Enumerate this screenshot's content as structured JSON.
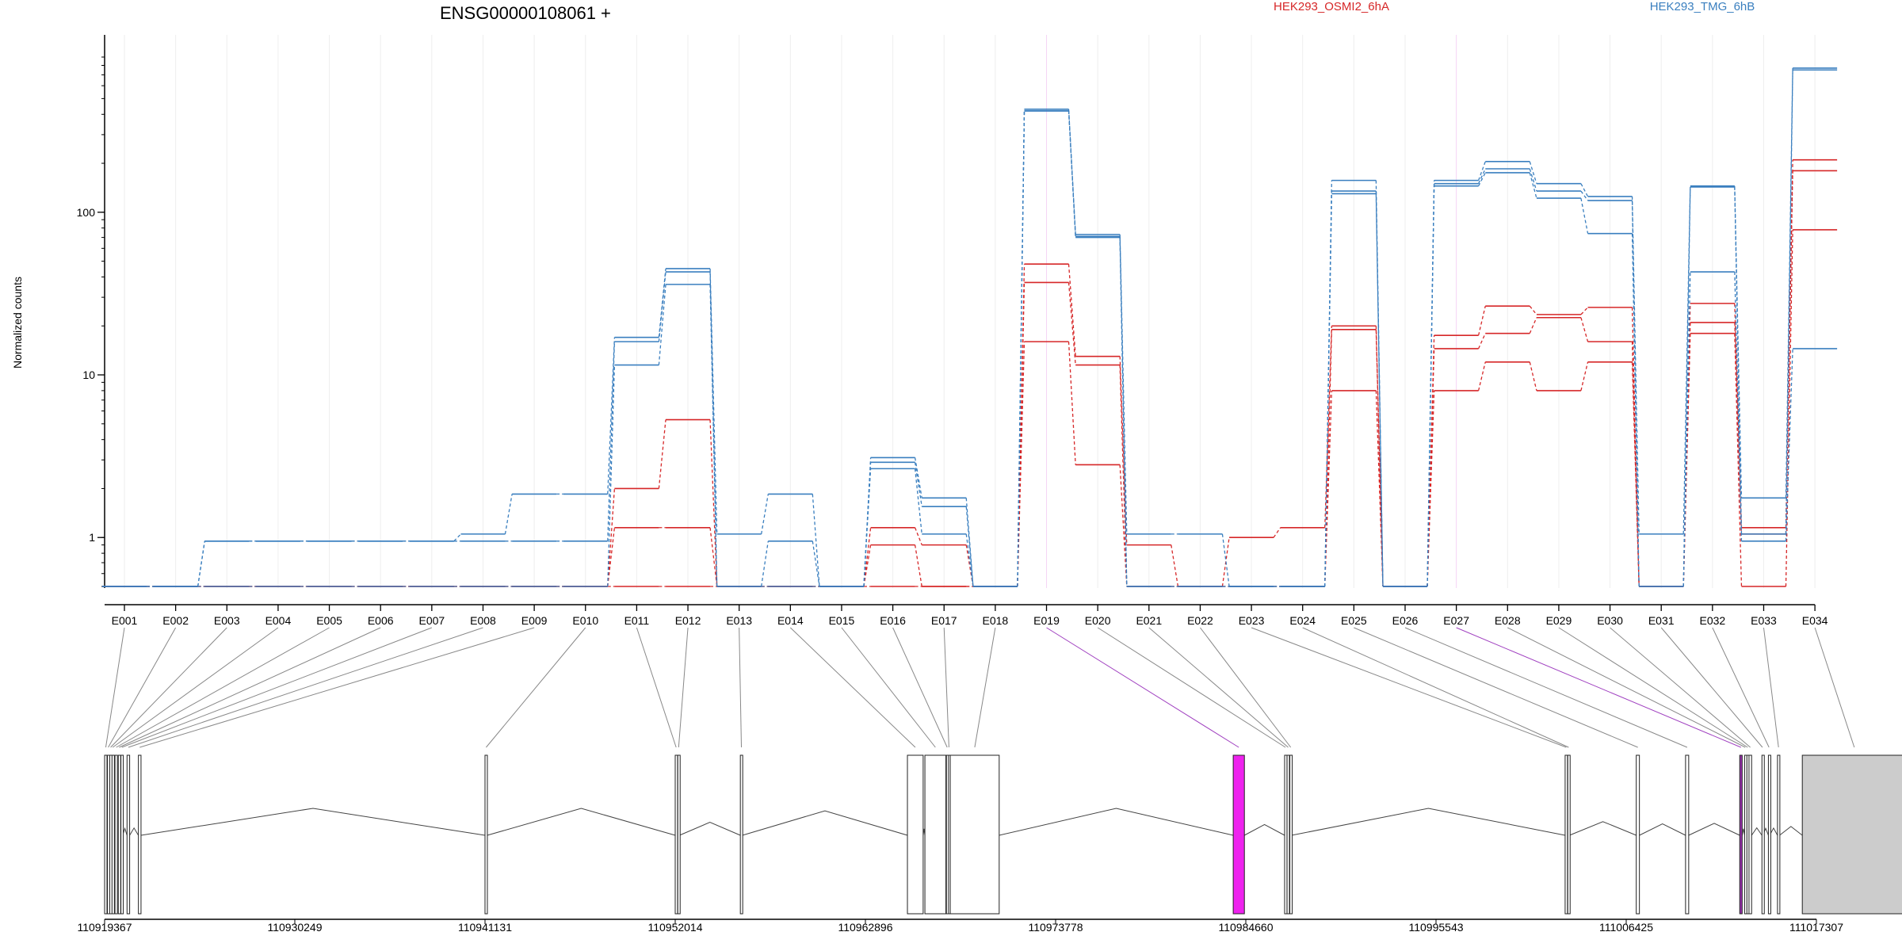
{
  "chart_data": {
    "type": "line",
    "title": "ENSG00000108061 +",
    "ylabel": "Normalized counts",
    "yscale": "log",
    "ylim": [
      0.5,
      900
    ],
    "y_ticks": [
      {
        "v": 1,
        "label": "1"
      },
      {
        "v": 10,
        "label": "10"
      },
      {
        "v": 100,
        "label": "100"
      }
    ],
    "exons": [
      "E001",
      "E002",
      "E003",
      "E004",
      "E005",
      "E006",
      "E007",
      "E008",
      "E009",
      "E010",
      "E011",
      "E012",
      "E013",
      "E014",
      "E015",
      "E016",
      "E017",
      "E018",
      "E019",
      "E020",
      "E021",
      "E022",
      "E023",
      "E024",
      "E025",
      "E026",
      "E027",
      "E028",
      "E029",
      "E030",
      "E031",
      "E032",
      "E033",
      "E034"
    ],
    "floor_value": 0.5,
    "legend": [
      {
        "name": "HEK293_OSMI2_6hA",
        "color": "#d62728"
      },
      {
        "name": "HEK293_TMG_6hB",
        "color": "#3a7fbf"
      }
    ],
    "series": [
      {
        "group": "HEK293_OSMI2_6hA",
        "color": "#d62728",
        "values": [
          0.5,
          0.5,
          0.5,
          0.5,
          0.5,
          0.5,
          0.5,
          0.5,
          0.5,
          0.5,
          2.0,
          5.3,
          0.5,
          0.5,
          0.5,
          1.15,
          0.9,
          0.5,
          48,
          13,
          0.9,
          0.5,
          1.0,
          1.15,
          20,
          0.5,
          17.5,
          26.5,
          23.5,
          26.0,
          0.5,
          27.5,
          1.15,
          210
        ]
      },
      {
        "group": "HEK293_OSMI2_6hA",
        "color": "#d62728",
        "values": [
          0.5,
          0.5,
          0.5,
          0.5,
          0.5,
          0.5,
          0.5,
          0.5,
          0.5,
          0.5,
          1.15,
          1.15,
          0.5,
          0.5,
          0.5,
          0.9,
          0.5,
          0.5,
          37,
          11.5,
          0.5,
          0.5,
          0.5,
          0.5,
          19,
          0.5,
          14.5,
          18,
          22.5,
          16,
          0.5,
          21,
          1.05,
          180
        ]
      },
      {
        "group": "HEK293_OSMI2_6hA",
        "color": "#d62728",
        "values": [
          0.5,
          0.5,
          0.5,
          0.5,
          0.5,
          0.5,
          0.5,
          0.5,
          0.5,
          0.5,
          0.5,
          0.5,
          0.5,
          0.5,
          0.5,
          0.5,
          0.5,
          0.5,
          16,
          2.8,
          0.5,
          0.5,
          0.5,
          0.5,
          8,
          0.5,
          8,
          12,
          8,
          12,
          0.5,
          18,
          0.5,
          78
        ]
      },
      {
        "group": "HEK293_TMG_6hB",
        "color": "#3a7fbf",
        "values": [
          0.5,
          0.5,
          0.95,
          0.95,
          0.95,
          0.95,
          0.95,
          1.05,
          1.85,
          1.85,
          17,
          45,
          1.05,
          1.85,
          0.5,
          3.1,
          1.75,
          0.5,
          430,
          73,
          1.05,
          1.05,
          0.5,
          0.5,
          157,
          0.5,
          157,
          205,
          150,
          125,
          1.05,
          145,
          1.75,
          770
        ]
      },
      {
        "group": "HEK293_TMG_6hB",
        "color": "#3a7fbf",
        "values": [
          0.5,
          0.5,
          0.95,
          0.95,
          0.95,
          0.95,
          0.95,
          0.95,
          0.95,
          0.95,
          16,
          43,
          0.5,
          0.95,
          0.5,
          2.9,
          1.55,
          0.5,
          420,
          71,
          0.5,
          0.5,
          0.5,
          0.5,
          135,
          0.5,
          150,
          185,
          135,
          118,
          0.5,
          143,
          1.05,
          750
        ]
      },
      {
        "group": "HEK293_TMG_6hB",
        "color": "#3a7fbf",
        "values": [
          0.5,
          0.5,
          0.5,
          0.5,
          0.5,
          0.5,
          0.5,
          0.5,
          0.5,
          0.5,
          11.5,
          36,
          0.5,
          0.5,
          0.5,
          2.65,
          1.05,
          0.5,
          420,
          70,
          0.5,
          0.5,
          0.5,
          0.5,
          130,
          0.5,
          145,
          175,
          122,
          74,
          0.5,
          43,
          0.95,
          14.5
        ]
      }
    ],
    "genomic_axis": {
      "start": 110919367,
      "end": 111017307,
      "ticks": [
        "110919367",
        "110930249",
        "110941131",
        "110952014",
        "110962896",
        "110973778",
        "110984660",
        "110995543",
        "111006425",
        "111017307"
      ]
    },
    "exon_coords": [
      [
        110919367,
        110919500
      ],
      [
        110919530,
        110919620
      ],
      [
        110919660,
        110919760
      ],
      [
        110919790,
        110919870
      ],
      [
        110919960,
        110920100
      ],
      [
        110920150,
        110920250
      ],
      [
        110920300,
        110920400
      ],
      [
        110920650,
        110920800
      ],
      [
        110921300,
        110921450
      ],
      [
        110941131,
        110941260
      ],
      [
        110952014,
        110952120
      ],
      [
        110952160,
        110952260
      ],
      [
        110955740,
        110955860
      ],
      [
        110965300,
        110966200
      ],
      [
        110966300,
        110967500
      ],
      [
        110967530,
        110967620
      ],
      [
        110967650,
        110967700
      ],
      [
        110967750,
        110970550
      ],
      [
        110983940,
        110984580
      ],
      [
        110986880,
        110986980
      ],
      [
        110987020,
        110987150
      ],
      [
        110987180,
        110987280
      ],
      [
        111002930,
        111003060
      ],
      [
        111003080,
        111003180
      ],
      [
        111007000,
        111007180
      ],
      [
        111009820,
        111010000
      ],
      [
        111012920,
        111013060
      ],
      [
        111013200,
        111013280
      ],
      [
        111013330,
        111013420
      ],
      [
        111013450,
        111013600
      ],
      [
        111014190,
        111014250
      ],
      [
        111014560,
        111014630
      ],
      [
        111015080,
        111015200
      ],
      [
        111016500,
        111022450
      ]
    ],
    "highlighted_exons": [
      {
        "exon": "E019",
        "color": "#ee22ee"
      },
      {
        "exon": "E027",
        "color": "#9b30b0"
      }
    ],
    "utr_exon": {
      "exon": "E034",
      "color": "#cccccc"
    }
  }
}
